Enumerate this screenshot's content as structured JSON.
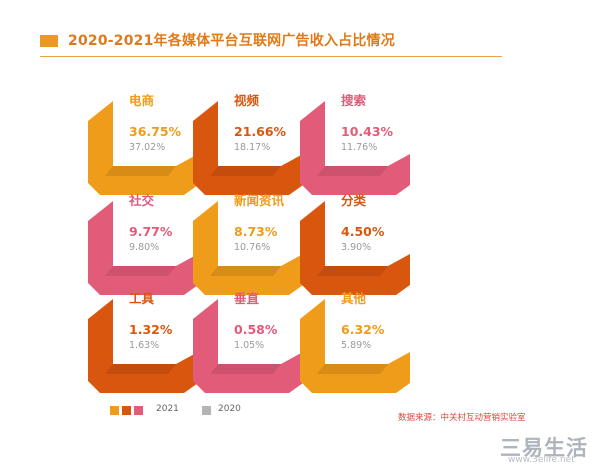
{
  "title": "2020-2021年各媒体平台互联网广告收入占比情况",
  "colors": {
    "orange": "#ee9c1a",
    "darkorange": "#d9560f",
    "pink": "#e25c7a",
    "gray": "#9a9a9a"
  },
  "chart_data": {
    "type": "table",
    "title": "2020-2021年各媒体平台互联网广告收入占比情况",
    "series_names": [
      "2021",
      "2020"
    ],
    "tiles": [
      {
        "label": "电商",
        "v2021": "36.75%",
        "v2020": "37.02%",
        "color": "orange"
      },
      {
        "label": "视频",
        "v2021": "21.66%",
        "v2020": "18.17%",
        "color": "darkorange"
      },
      {
        "label": "搜索",
        "v2021": "10.43%",
        "v2020": "11.76%",
        "color": "pink"
      },
      {
        "label": "社交",
        "v2021": "9.77%",
        "v2020": "9.80%",
        "color": "pink"
      },
      {
        "label": "新闻资讯",
        "v2021": "8.73%",
        "v2020": "10.76%",
        "color": "orange"
      },
      {
        "label": "分类",
        "v2021": "4.50%",
        "v2020": "3.90%",
        "color": "darkorange"
      },
      {
        "label": "工具",
        "v2021": "1.32%",
        "v2020": "1.63%",
        "color": "darkorange"
      },
      {
        "label": "垂直",
        "v2021": "0.58%",
        "v2020": "1.05%",
        "color": "pink"
      },
      {
        "label": "其他",
        "v2021": "6.32%",
        "v2020": "5.89%",
        "color": "orange"
      }
    ]
  },
  "legend": {
    "label_2021": "2021",
    "label_2020": "2020"
  },
  "source": "数据来源：中关村互动营销实验室",
  "watermark": {
    "text": "三易生活",
    "url": "www.3elife.net"
  }
}
